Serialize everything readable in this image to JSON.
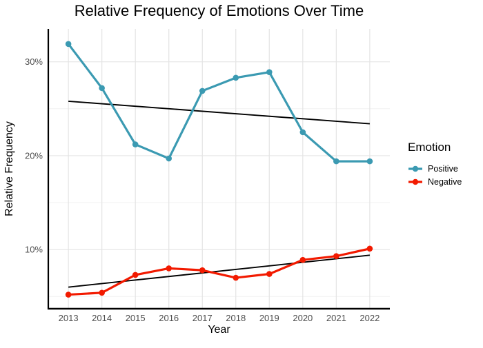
{
  "title": "Relative Frequency of Emotions Over Time",
  "legend": {
    "title": "Emotion",
    "items": [
      {
        "label": "Positive"
      },
      {
        "label": "Negative"
      }
    ]
  },
  "colors": {
    "positive": "#3B9AB2",
    "negative": "#F21A00",
    "trend_line": "#000000",
    "axis_line": "#000000",
    "tick_label": "#4D4D4D",
    "grid_major": "#E4E4E4",
    "grid_minor": "#F0F0F0",
    "background": "#FFFFFF",
    "title_text": "#000000"
  },
  "chart_data": {
    "type": "line",
    "title": "Relative Frequency of Emotions Over Time",
    "xlabel": "Year",
    "ylabel": "Relative Frequency",
    "x": [
      2013,
      2014,
      2015,
      2016,
      2017,
      2018,
      2019,
      2020,
      2021,
      2022
    ],
    "x_tick_labels": [
      "2013",
      "2014",
      "2015",
      "2016",
      "2017",
      "2018",
      "2019",
      "2020",
      "2021",
      "2022"
    ],
    "series": [
      {
        "name": "Positive",
        "color": "#3B9AB2",
        "values": [
          31.9,
          27.2,
          21.2,
          19.7,
          26.9,
          28.3,
          28.9,
          22.5,
          19.4,
          19.4
        ]
      },
      {
        "name": "Negative",
        "color": "#F21A00",
        "values": [
          5.2,
          5.4,
          7.3,
          8.0,
          7.8,
          7.0,
          7.4,
          8.9,
          9.3,
          10.1
        ]
      }
    ],
    "trend_lines": [
      {
        "series": "Positive",
        "color": "#000000",
        "x_start": 2013,
        "y_start": 25.8,
        "x_end": 2022,
        "y_end": 23.4
      },
      {
        "series": "Negative",
        "color": "#000000",
        "x_start": 2013,
        "y_start": 6.0,
        "x_end": 2022,
        "y_end": 9.4
      }
    ],
    "y_ticks": [
      {
        "value": 10,
        "label": "10%"
      },
      {
        "value": 20,
        "label": "20%"
      },
      {
        "value": 30,
        "label": "30%"
      }
    ],
    "y_minor_gridlines": [
      5,
      15,
      25
    ],
    "ylim": [
      3.7,
      33.5
    ],
    "grid": "major-and-minor-horizontal, major-vertical",
    "legend_position": "right",
    "legend_title": "Emotion"
  }
}
